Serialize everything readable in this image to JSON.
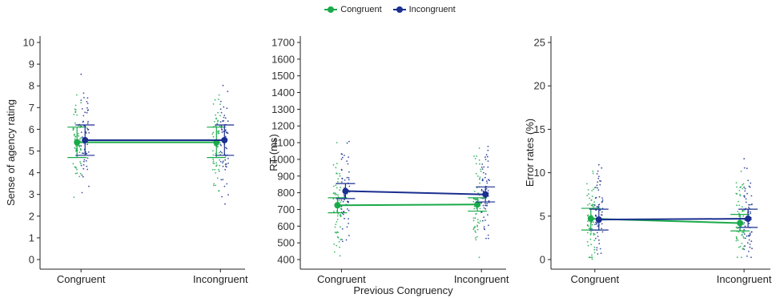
{
  "legend": {
    "items": [
      {
        "label": "Congruent",
        "color": "#1aaa4a"
      },
      {
        "label": "Incongruent",
        "color": "#1a2f8f"
      }
    ]
  },
  "shared_xlabel": "Previous Congruency",
  "colors": {
    "congruent": "#1aaa4a",
    "incongruent": "#1a2f8f",
    "axis": "#222222"
  },
  "chart_data": [
    {
      "type": "line",
      "categories": [
        "Congruent",
        "Incongruent"
      ],
      "ylabel": "Sense of agency rating",
      "xlabel": "",
      "ylim": [
        0,
        10
      ],
      "yticks": [
        0,
        1,
        2,
        3,
        4,
        5,
        6,
        7,
        8,
        9,
        10
      ],
      "series": [
        {
          "name": "Congruent",
          "values": [
            5.4,
            5.4
          ],
          "ci_low": [
            4.7,
            4.7
          ],
          "ci_high": [
            6.1,
            6.1
          ]
        },
        {
          "name": "Incongruent",
          "values": [
            5.5,
            5.5
          ],
          "ci_low": [
            4.8,
            4.8
          ],
          "ci_high": [
            6.2,
            6.2
          ]
        }
      ],
      "legend": "top-center",
      "grid": false
    },
    {
      "type": "line",
      "categories": [
        "Congruent",
        "Incongruent"
      ],
      "ylabel": "RT (ms)",
      "xlabel": "Previous Congruency",
      "ylim": [
        400,
        1700
      ],
      "yticks": [
        400,
        500,
        600,
        700,
        800,
        900,
        1000,
        1100,
        1200,
        1300,
        1400,
        1500,
        1600,
        1700
      ],
      "series": [
        {
          "name": "Congruent",
          "values": [
            725,
            730
          ],
          "ci_low": [
            680,
            690
          ],
          "ci_high": [
            770,
            770
          ]
        },
        {
          "name": "Incongruent",
          "values": [
            810,
            790
          ],
          "ci_low": [
            765,
            745
          ],
          "ci_high": [
            855,
            835
          ]
        }
      ],
      "legend": "top-center",
      "grid": false
    },
    {
      "type": "line",
      "categories": [
        "Congruent",
        "Incongruent"
      ],
      "ylabel": "Error rates (%)",
      "xlabel": "",
      "ylim": [
        0,
        25
      ],
      "yticks": [
        0,
        5,
        10,
        15,
        20,
        25
      ],
      "series": [
        {
          "name": "Congruent",
          "values": [
            4.7,
            4.2
          ],
          "ci_low": [
            3.4,
            3.3
          ],
          "ci_high": [
            5.9,
            5.2
          ]
        },
        {
          "name": "Incongruent",
          "values": [
            4.6,
            4.7
          ],
          "ci_low": [
            3.4,
            3.7
          ],
          "ci_high": [
            5.8,
            5.8
          ]
        }
      ],
      "legend": "top-center",
      "grid": false
    }
  ]
}
